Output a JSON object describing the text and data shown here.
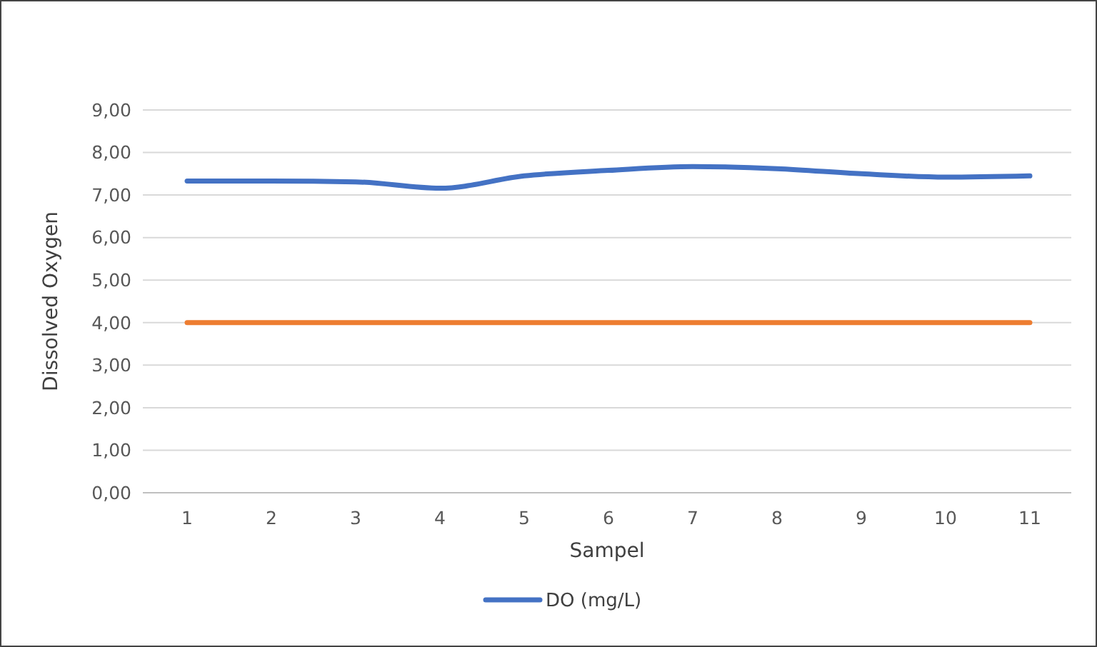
{
  "chart_data": {
    "type": "line",
    "xlabel": "Sampel",
    "ylabel": "Dissolved Oxygen",
    "categories": [
      "1",
      "2",
      "3",
      "4",
      "5",
      "6",
      "7",
      "8",
      "9",
      "10",
      "11"
    ],
    "series": [
      {
        "name": "DO (mg/L)",
        "color": "#4472c4",
        "values": [
          7.33,
          7.33,
          7.31,
          7.16,
          7.45,
          7.58,
          7.67,
          7.62,
          7.5,
          7.42,
          7.45
        ]
      },
      {
        "color": "#ed7d31",
        "values": [
          4,
          4,
          4,
          4,
          4,
          4,
          4,
          4,
          4,
          4,
          4
        ]
      }
    ],
    "ylim": [
      0,
      9
    ],
    "yticks": [
      {
        "value": 0,
        "label": "0,00"
      },
      {
        "value": 1,
        "label": "1,00"
      },
      {
        "value": 2,
        "label": "2,00"
      },
      {
        "value": 3,
        "label": "3,00"
      },
      {
        "value": 4,
        "label": "4,00"
      },
      {
        "value": 5,
        "label": "5,00"
      },
      {
        "value": 6,
        "label": "6,00"
      },
      {
        "value": 7,
        "label": "7,00"
      },
      {
        "value": 8,
        "label": "8,00"
      },
      {
        "value": 9,
        "label": "9,00"
      }
    ],
    "grid": "y",
    "legend": "bottom",
    "marker": "none",
    "line_style": "solid"
  }
}
